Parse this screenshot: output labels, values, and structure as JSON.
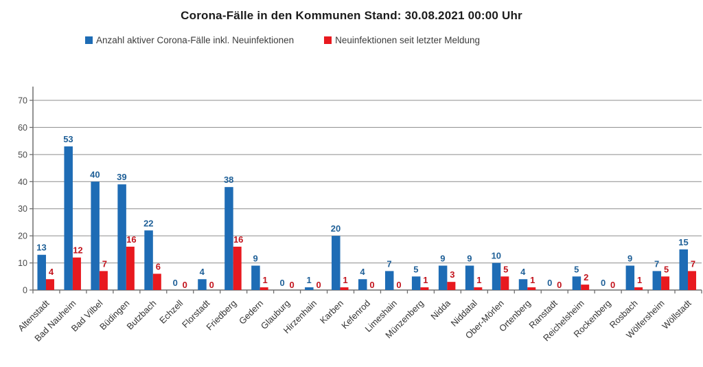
{
  "title": "Corona-Fälle in den Kommunen Stand: 30.08.2021 00:00 Uhr",
  "legend": [
    {
      "label": "Anzahl aktiver Corona-Fälle inkl. Neuinfektionen",
      "color": "#1e6cb5"
    },
    {
      "label": "Neuinfektionen seit letzter Meldung",
      "color": "#e8191f"
    }
  ],
  "chart_data": {
    "type": "bar",
    "title": "Corona-Fälle in den Kommunen Stand: 30.08.2021 00:00 Uhr",
    "xlabel": "",
    "ylabel": "",
    "ylim": [
      0,
      70
    ],
    "yticks": [
      0,
      10,
      20,
      30,
      40,
      50,
      60,
      70
    ],
    "grid": true,
    "legend_position": "top",
    "categories": [
      "Altenstadt",
      "Bad Nauheim",
      "Bad Vilbel",
      "Büdingen",
      "Butzbach",
      "Echzell",
      "Florstadt",
      "Friedberg",
      "Gedern",
      "Glauburg",
      "Hirzenhain",
      "Karben",
      "Kefenrod",
      "Limeshain",
      "Münzenberg",
      "Nidda",
      "Niddatal",
      "Ober-Mörlen",
      "Ortenberg",
      "Ranstadt",
      "Reichelsheim",
      "Rockenberg",
      "Rosbach",
      "Wölfersheim",
      "Wöllstadt"
    ],
    "series": [
      {
        "name": "Anzahl aktiver Corona-Fälle inkl. Neuinfektionen",
        "color": "#1e6cb5",
        "label_color": "#1e5f97",
        "values": [
          13,
          53,
          40,
          39,
          22,
          0,
          4,
          38,
          9,
          0,
          1,
          20,
          4,
          7,
          5,
          9,
          9,
          10,
          4,
          0,
          5,
          0,
          9,
          7,
          15
        ]
      },
      {
        "name": "Neuinfektionen seit letzter Meldung",
        "color": "#e8191f",
        "label_color": "#c2131c",
        "values": [
          4,
          12,
          7,
          16,
          6,
          0,
          0,
          16,
          1,
          0,
          0,
          1,
          0,
          0,
          1,
          3,
          1,
          5,
          1,
          0,
          2,
          0,
          1,
          5,
          7
        ]
      }
    ],
    "axis_color": "#6e6e6e",
    "grid_color": "#8c8c8c"
  }
}
